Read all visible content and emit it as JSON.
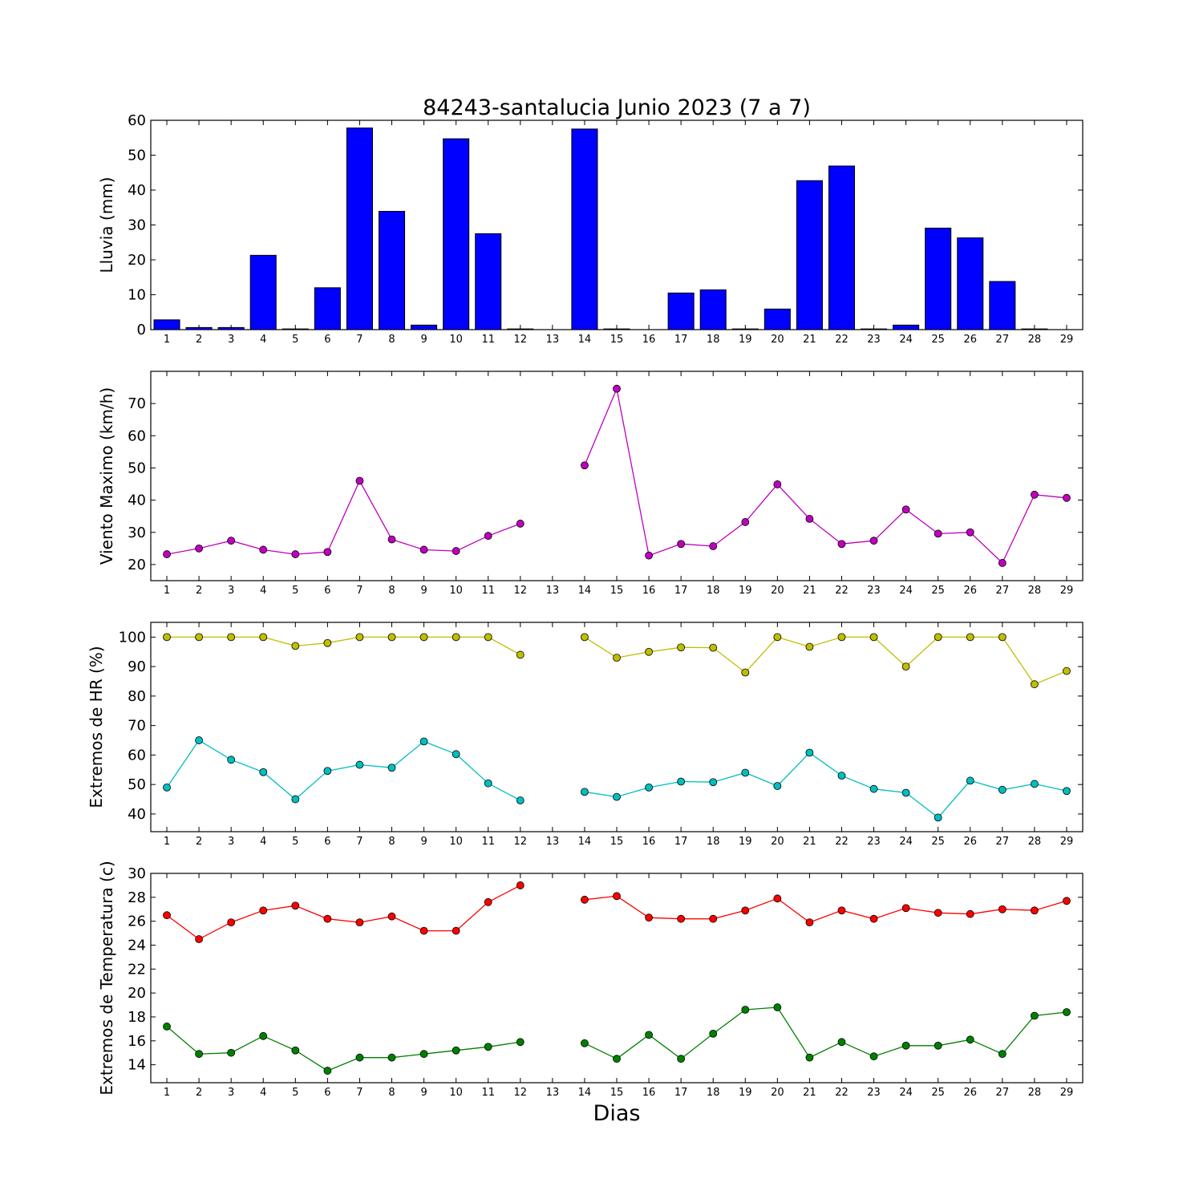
{
  "figure": {
    "title": "84243-santalucia Junio 2023  (7 a 7)",
    "xlabel": "Dias"
  },
  "chart_data": [
    {
      "id": "lluvia",
      "type": "bar",
      "title": "84243-santalucia Junio 2023  (7 a 7)",
      "xlabel": "",
      "ylabel": "Lluvia (mm)",
      "categories": [
        1,
        2,
        3,
        4,
        5,
        6,
        7,
        8,
        9,
        10,
        11,
        12,
        13,
        14,
        15,
        16,
        17,
        18,
        19,
        20,
        21,
        22,
        23,
        24,
        25,
        26,
        27,
        28,
        29
      ],
      "values": [
        2.8,
        0.6,
        0.6,
        21.3,
        0.2,
        12.0,
        57.8,
        33.9,
        1.3,
        54.7,
        27.5,
        0.2,
        0,
        57.5,
        0.2,
        0,
        10.5,
        11.4,
        0.2,
        5.9,
        42.7,
        46.9,
        0.2,
        1.3,
        29.1,
        26.3,
        13.8,
        0.2,
        0
      ],
      "ylim": [
        0,
        60
      ],
      "yticks": [
        0,
        10,
        20,
        30,
        40,
        50,
        60
      ],
      "colors": {
        "bar": "#0000ff",
        "edge": "#000000"
      }
    },
    {
      "id": "viento",
      "type": "line",
      "xlabel": "",
      "ylabel": "Viento Maximo (km/h)",
      "x": [
        1,
        2,
        3,
        4,
        5,
        6,
        7,
        8,
        9,
        10,
        11,
        12,
        13,
        14,
        15,
        16,
        17,
        18,
        19,
        20,
        21,
        22,
        23,
        24,
        25,
        26,
        27,
        28,
        29
      ],
      "xticks": [
        1,
        2,
        3,
        4,
        5,
        6,
        7,
        8,
        9,
        10,
        11,
        12,
        13,
        14,
        15,
        16,
        17,
        18,
        19,
        20,
        21,
        22,
        23,
        24,
        25,
        26,
        27,
        28,
        29
      ],
      "series": [
        {
          "color": "#bf00bf",
          "values": [
            23.2,
            25.0,
            27.4,
            24.6,
            23.2,
            23.9,
            46.0,
            27.8,
            24.6,
            24.2,
            28.9,
            32.7,
            null,
            50.8,
            74.6,
            22.8,
            26.4,
            25.7,
            33.2,
            44.9,
            34.2,
            26.4,
            27.4,
            37.1,
            29.6,
            30.0,
            20.5,
            41.7,
            40.7
          ]
        }
      ],
      "ylim": [
        15,
        80
      ],
      "yticks": [
        20,
        30,
        40,
        50,
        60,
        70
      ]
    },
    {
      "id": "humedad",
      "type": "line",
      "xlabel": "",
      "ylabel": "Extremos de HR (%)",
      "x": [
        1,
        2,
        3,
        4,
        5,
        6,
        7,
        8,
        9,
        10,
        11,
        12,
        13,
        14,
        15,
        16,
        17,
        18,
        19,
        20,
        21,
        22,
        23,
        24,
        25,
        26,
        27,
        28,
        29
      ],
      "xticks": [
        1,
        2,
        3,
        4,
        5,
        6,
        7,
        8,
        9,
        10,
        11,
        12,
        13,
        14,
        15,
        16,
        17,
        18,
        19,
        20,
        21,
        22,
        23,
        24,
        25,
        26,
        27,
        28,
        29
      ],
      "series": [
        {
          "color": "#bfbf00",
          "values": [
            100,
            100,
            100,
            100,
            97,
            98,
            100,
            100,
            100,
            100,
            100,
            94,
            null,
            100,
            93,
            95,
            96.5,
            96.4,
            88,
            100,
            96.7,
            100,
            100,
            90,
            100,
            100,
            100,
            84,
            88.5
          ]
        },
        {
          "color": "#00bfbf",
          "values": [
            49,
            65,
            58.4,
            54.2,
            45,
            54.6,
            56.7,
            55.7,
            64.6,
            60.3,
            50.4,
            44.6,
            null,
            47.5,
            45.8,
            49,
            51,
            50.8,
            54,
            49.5,
            60.8,
            53,
            48.5,
            47.2,
            38.8,
            51.3,
            48.2,
            50.2,
            47.8
          ]
        }
      ],
      "ylim": [
        34,
        105
      ],
      "yticks": [
        40,
        50,
        60,
        70,
        80,
        90,
        100
      ]
    },
    {
      "id": "temperatura",
      "type": "line",
      "xlabel": "Dias",
      "ylabel": "Extremos de Temperatura (c)",
      "x": [
        1,
        2,
        3,
        4,
        5,
        6,
        7,
        8,
        9,
        10,
        11,
        12,
        13,
        14,
        15,
        16,
        17,
        18,
        19,
        20,
        21,
        22,
        23,
        24,
        25,
        26,
        27,
        28,
        29
      ],
      "xticks": [
        1,
        2,
        3,
        4,
        5,
        6,
        7,
        8,
        9,
        10,
        11,
        12,
        13,
        14,
        15,
        16,
        17,
        18,
        19,
        20,
        21,
        22,
        23,
        24,
        25,
        26,
        27,
        28,
        29
      ],
      "series": [
        {
          "color": "#ff0000",
          "values": [
            26.5,
            24.5,
            25.9,
            26.9,
            27.3,
            26.2,
            25.9,
            26.4,
            25.2,
            25.2,
            27.6,
            29.0,
            null,
            27.8,
            28.1,
            26.3,
            26.2,
            26.2,
            26.9,
            27.9,
            25.9,
            26.9,
            26.2,
            27.1,
            26.7,
            26.6,
            27.0,
            26.9,
            27.7
          ]
        },
        {
          "color": "#008000",
          "values": [
            17.2,
            14.9,
            15.0,
            16.4,
            15.2,
            13.5,
            14.6,
            14.6,
            14.9,
            15.2,
            15.5,
            15.9,
            null,
            15.8,
            14.5,
            16.5,
            14.5,
            16.6,
            18.6,
            18.8,
            14.6,
            15.9,
            14.7,
            15.6,
            15.6,
            16.1,
            14.9,
            18.1,
            18.4
          ]
        }
      ],
      "ylim": [
        12.5,
        30
      ],
      "yticks": [
        14,
        16,
        18,
        20,
        22,
        24,
        26,
        28,
        30
      ]
    }
  ]
}
